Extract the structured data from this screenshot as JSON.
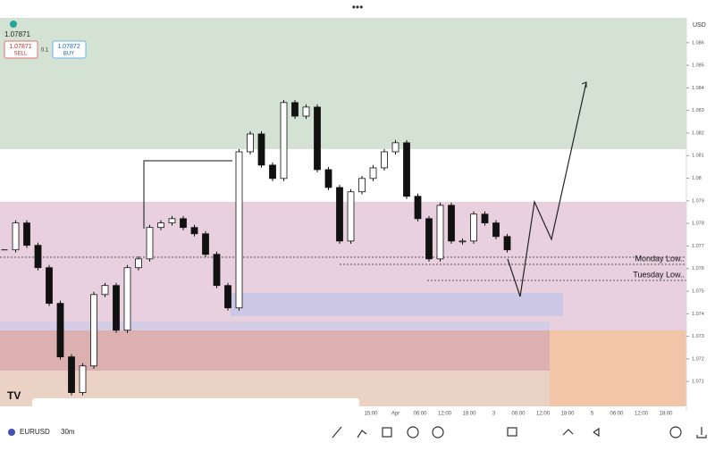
{
  "header": {
    "price": "1.07871",
    "sell_price": "1.07871",
    "sell_label": "SELL",
    "quantity": "0.1",
    "buy_price": "1.07872",
    "buy_label": "BUY",
    "currency": "USD"
  },
  "chart_data": {
    "type": "candlestick",
    "values": [
      1.07683,
      1.07802,
      1.07703,
      1.07604,
      1.07446,
      1.07209,
      1.07051,
      1.07169,
      1.07485,
      1.07525,
      1.07327,
      1.07604,
      1.07643,
      1.07782,
      1.07802,
      1.07821,
      1.07782,
      1.07754,
      1.07663,
      1.07525,
      1.07426,
      1.08117,
      1.08196,
      1.08058,
      1.07999,
      1.08335,
      1.08275,
      1.08315,
      1.08038,
      1.07959,
      1.07722,
      1.0794,
      1.07999,
      1.08046,
      1.08117,
      1.08157,
      1.0792,
      1.07821,
      1.07643,
      1.0788,
      1.07722,
      1.07722,
      1.07841,
      1.07802,
      1.07742,
      1.07683
    ],
    "ylim": [
      1.0699,
      1.0871
    ],
    "yticks": [
      1.071,
      1.072,
      1.073,
      1.074,
      1.075,
      1.076,
      1.077,
      1.078,
      1.079,
      1.08,
      1.081,
      1.082,
      1.083,
      1.084,
      1.085,
      1.086
    ],
    "time_labels": [
      "15:00",
      "Apr",
      "06:00",
      "12:00",
      "18:00",
      "3",
      "06:00",
      "12:00",
      "18:00",
      "5",
      "06:00",
      "12:00",
      "18:00"
    ],
    "annotations": [
      "Monday Low..",
      "Tuesday Low.."
    ]
  },
  "footer": {
    "symbol": "EURUSD",
    "interval": "30m"
  }
}
